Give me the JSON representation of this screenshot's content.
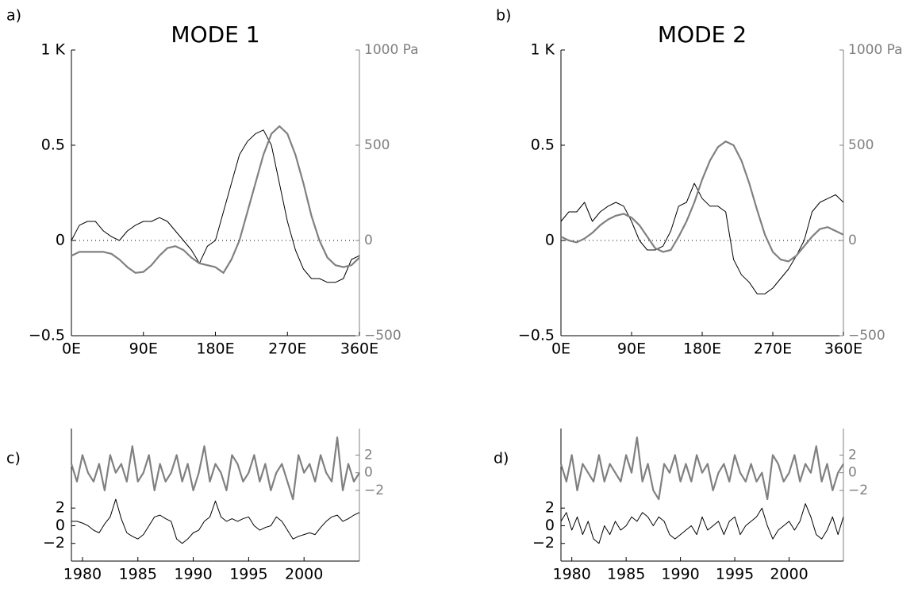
{
  "chart_data": [
    {
      "type": "line",
      "panel_label": "a)",
      "title": "MODE 1",
      "x": [
        0,
        10,
        20,
        30,
        40,
        50,
        60,
        70,
        80,
        90,
        100,
        110,
        120,
        130,
        140,
        150,
        160,
        170,
        180,
        190,
        200,
        210,
        220,
        230,
        240,
        250,
        260,
        270,
        280,
        290,
        300,
        310,
        320,
        330,
        340,
        350,
        360
      ],
      "series": [
        {
          "color": "#000000",
          "values": [
            0,
            0.08,
            0.1,
            0.1,
            0.05,
            0.02,
            0,
            0.05,
            0.08,
            0.1,
            0.1,
            0.12,
            0.1,
            0.05,
            0,
            -0.05,
            -0.12,
            -0.03,
            0,
            0.15,
            0.3,
            0.45,
            0.52,
            0.56,
            0.58,
            0.5,
            0.3,
            0.1,
            -0.05,
            -0.15,
            -0.2,
            -0.2,
            -0.22,
            -0.22,
            -0.2,
            -0.1,
            -0.08
          ]
        },
        {
          "color": "#808080",
          "axis": "y2",
          "values": [
            -80,
            -60,
            -60,
            -60,
            -60,
            -70,
            -100,
            -140,
            -170,
            -165,
            -130,
            -80,
            -40,
            -30,
            -50,
            -90,
            -120,
            -130,
            -140,
            -170,
            -100,
            0,
            150,
            300,
            450,
            560,
            600,
            560,
            450,
            300,
            130,
            0,
            -90,
            -130,
            -140,
            -130,
            -90
          ]
        }
      ],
      "xlim": [
        0,
        360
      ],
      "xticks": [
        {
          "value": 0,
          "label": "0E"
        },
        {
          "value": 90,
          "label": "90E"
        },
        {
          "value": 180,
          "label": "180E"
        },
        {
          "value": 270,
          "label": "270E"
        },
        {
          "value": 360,
          "label": "360E"
        }
      ],
      "ylim": [
        -0.5,
        1
      ],
      "yticks": [
        {
          "value": -0.5,
          "label": "−0.5"
        },
        0,
        0.5,
        {
          "value": 1,
          "label": "1 K"
        }
      ],
      "y2lim": [
        -500,
        1000
      ],
      "y2ticks": [
        {
          "value": -500,
          "label": "−500"
        },
        0,
        500,
        {
          "value": 1000,
          "label": "1000 Pa"
        }
      ],
      "zero_line": true
    },
    {
      "type": "line",
      "panel_label": "b)",
      "title": "MODE 2",
      "x": [
        0,
        10,
        20,
        30,
        40,
        50,
        60,
        70,
        80,
        90,
        100,
        110,
        120,
        130,
        140,
        150,
        160,
        170,
        180,
        190,
        200,
        210,
        220,
        230,
        240,
        250,
        260,
        270,
        280,
        290,
        300,
        310,
        320,
        330,
        340,
        350,
        360
      ],
      "series": [
        {
          "color": "#000000",
          "values": [
            0.1,
            0.15,
            0.15,
            0.2,
            0.1,
            0.15,
            0.18,
            0.2,
            0.18,
            0.1,
            0,
            -0.05,
            -0.05,
            -0.03,
            0.05,
            0.18,
            0.2,
            0.3,
            0.22,
            0.18,
            0.18,
            0.15,
            -0.1,
            -0.18,
            -0.22,
            -0.28,
            -0.28,
            -0.25,
            -0.2,
            -0.15,
            -0.08,
            0,
            0.15,
            0.2,
            0.22,
            0.24,
            0.2
          ]
        },
        {
          "color": "#808080",
          "axis": "y2",
          "values": [
            20,
            0,
            -10,
            10,
            40,
            80,
            110,
            130,
            140,
            120,
            80,
            20,
            -40,
            -60,
            -50,
            20,
            100,
            200,
            320,
            420,
            490,
            520,
            500,
            420,
            300,
            160,
            30,
            -60,
            -100,
            -110,
            -80,
            -30,
            20,
            60,
            70,
            50,
            30
          ]
        }
      ],
      "xlim": [
        0,
        360
      ],
      "xticks": [
        {
          "value": 0,
          "label": "0E"
        },
        {
          "value": 90,
          "label": "90E"
        },
        {
          "value": 180,
          "label": "180E"
        },
        {
          "value": 270,
          "label": "270E"
        },
        {
          "value": 360,
          "label": "360E"
        }
      ],
      "ylim": [
        -0.5,
        1
      ],
      "yticks": [
        {
          "value": -0.5,
          "label": "−0.5"
        },
        0,
        0.5,
        {
          "value": 1,
          "label": "1 K"
        }
      ],
      "y2lim": [
        -500,
        1000
      ],
      "y2ticks": [
        {
          "value": -500,
          "label": "−500"
        },
        0,
        500,
        {
          "value": 1000,
          "label": "1000 Pa"
        }
      ],
      "zero_line": true
    },
    {
      "type": "line",
      "panel_label": "c)",
      "x": [
        1979,
        1979.5,
        1980,
        1980.5,
        1981,
        1981.5,
        1982,
        1982.5,
        1983,
        1983.5,
        1984,
        1984.5,
        1985,
        1985.5,
        1986,
        1986.5,
        1987,
        1987.5,
        1988,
        1988.5,
        1989,
        1989.5,
        1990,
        1990.5,
        1991,
        1991.5,
        1992,
        1992.5,
        1993,
        1993.5,
        1994,
        1994.5,
        1995,
        1995.5,
        1996,
        1996.5,
        1997,
        1997.5,
        1998,
        1998.5,
        1999,
        1999.5,
        2000,
        2000.5,
        2001,
        2001.5,
        2002,
        2002.5,
        2003,
        2003.5,
        2004,
        2004.5,
        2005
      ],
      "series": [
        {
          "color": "#000000",
          "values": [
            0.5,
            0.5,
            0.3,
            0,
            -0.5,
            -0.8,
            0.2,
            1,
            3,
            0.8,
            -0.8,
            -1.2,
            -1.5,
            -1,
            0,
            1,
            1.2,
            0.8,
            0.5,
            -1.5,
            -2,
            -1.5,
            -0.8,
            -0.5,
            0.5,
            1,
            2.8,
            1,
            0.5,
            0.8,
            0.5,
            0.8,
            1,
            0,
            -0.5,
            -0.2,
            0,
            1,
            0.5,
            -0.5,
            -1.5,
            -1.2,
            -1,
            -0.8,
            -1,
            -0.2,
            0.5,
            1,
            1.2,
            0.5,
            0.8,
            1.2,
            1.5
          ]
        },
        {
          "color": "#808080",
          "axis": "y2",
          "values": [
            1,
            -1,
            2,
            0,
            -1,
            1,
            -2,
            2,
            0,
            1,
            -1,
            3,
            -1,
            0,
            2,
            -2,
            1,
            -1,
            0,
            2,
            -1,
            1,
            -2,
            0,
            3,
            -1,
            1,
            0,
            -2,
            2,
            1,
            -1,
            0,
            2,
            -1,
            1,
            -2,
            0,
            1,
            -1,
            -3,
            2,
            0,
            1,
            -1,
            2,
            0,
            -1,
            4,
            -2,
            1,
            -1,
            0
          ]
        }
      ],
      "xlim": [
        1979,
        2005
      ],
      "xticks": [
        1980,
        1985,
        1990,
        1995,
        2000
      ],
      "ylim": [
        -4,
        11
      ],
      "yticks": [
        {
          "value": -2,
          "label": "−2"
        },
        0,
        2
      ],
      "y2lim": [
        -10,
        5
      ],
      "y2ticks": [
        {
          "value": -2,
          "label": "−2"
        },
        0,
        2
      ],
      "zero_line": false
    },
    {
      "type": "line",
      "panel_label": "d)",
      "x": [
        1979,
        1979.5,
        1980,
        1980.5,
        1981,
        1981.5,
        1982,
        1982.5,
        1983,
        1983.5,
        1984,
        1984.5,
        1985,
        1985.5,
        1986,
        1986.5,
        1987,
        1987.5,
        1988,
        1988.5,
        1989,
        1989.5,
        1990,
        1990.5,
        1991,
        1991.5,
        1992,
        1992.5,
        1993,
        1993.5,
        1994,
        1994.5,
        1995,
        1995.5,
        1996,
        1996.5,
        1997,
        1997.5,
        1998,
        1998.5,
        1999,
        1999.5,
        2000,
        2000.5,
        2001,
        2001.5,
        2002,
        2002.5,
        2003,
        2003.5,
        2004,
        2004.5,
        2005
      ],
      "series": [
        {
          "color": "#000000",
          "values": [
            0.5,
            1.5,
            -0.5,
            1,
            -1,
            0.5,
            -1.5,
            -2,
            0,
            -1,
            0.5,
            -0.5,
            0,
            1,
            0.5,
            1.5,
            1,
            0,
            1,
            0.5,
            -1,
            -1.5,
            -1,
            -0.5,
            0,
            -1,
            1,
            -0.5,
            0,
            0.5,
            -1,
            0.5,
            1,
            -1,
            0,
            0.5,
            1,
            2,
            0,
            -1.5,
            -0.5,
            0,
            0.5,
            -0.5,
            0.5,
            2.5,
            1,
            -1,
            -1.5,
            -0.5,
            1,
            -1,
            1
          ]
        },
        {
          "color": "#808080",
          "axis": "y2",
          "values": [
            1,
            -1,
            2,
            -2,
            1,
            0,
            -1,
            2,
            -1,
            1,
            0,
            -1,
            2,
            0,
            4,
            -1,
            1,
            -2,
            -3,
            1,
            0,
            2,
            -1,
            1,
            -1,
            2,
            0,
            1,
            -2,
            0,
            1,
            -1,
            2,
            0,
            -1,
            1,
            -1,
            0,
            -3,
            2,
            1,
            -1,
            0,
            2,
            -1,
            1,
            0,
            3,
            -1,
            1,
            -2,
            0,
            1
          ]
        }
      ],
      "xlim": [
        1979,
        2005
      ],
      "xticks": [
        1980,
        1985,
        1990,
        1995,
        2000
      ],
      "ylim": [
        -4,
        11
      ],
      "yticks": [
        {
          "value": -2,
          "label": "−2"
        },
        0,
        2
      ],
      "y2lim": [
        -10,
        5
      ],
      "y2ticks": [
        {
          "value": -2,
          "label": "−2"
        },
        0,
        2
      ],
      "zero_line": false
    }
  ]
}
